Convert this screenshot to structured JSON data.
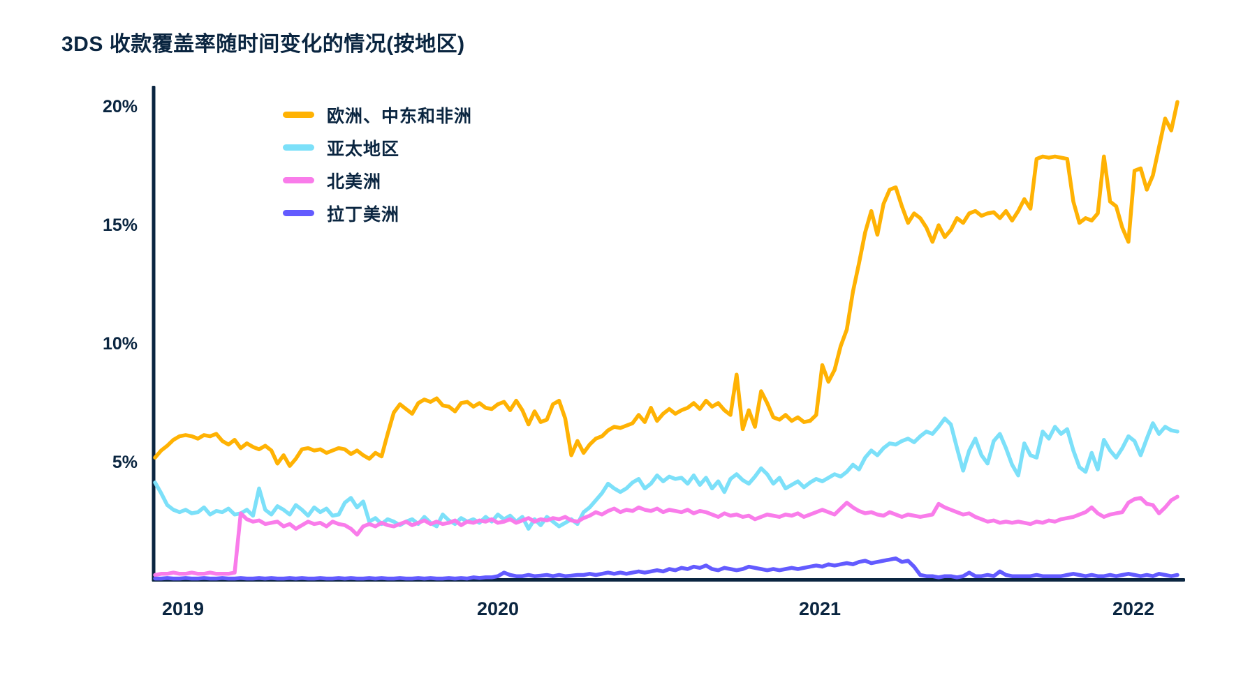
{
  "title": "3DS 收款覆盖率随时间变化的情况(按地区)",
  "colors": {
    "text_navy": "#0a2540",
    "axis": "#0a2540",
    "background": "#ffffff",
    "emea_orange": "#ffb203",
    "apac_cyan": "#7ce0f9",
    "na_pink": "#f97cea",
    "latam_purple": "#635bff"
  },
  "chart_data": {
    "type": "line",
    "title": "3DS 收款覆盖率随时间变化的情况(按地区)",
    "unit": "%",
    "grid": false,
    "legend_position": "top-left-inside",
    "x_axis": {
      "tick_labels": [
        "2019",
        "2020",
        "2021",
        "2022"
      ],
      "range_description": "late 2018 through early 2022, weekly points"
    },
    "y_axis": {
      "tick_labels": [
        "5%",
        "10%",
        "15%",
        "20%"
      ],
      "tick_values": [
        5,
        10,
        15,
        20
      ],
      "min": 0,
      "max": 21
    },
    "series": [
      {
        "name": "欧洲、中东和非洲",
        "color": "#ffb203",
        "values": [
          5.2,
          5.5,
          5.7,
          5.95,
          6.1,
          6.15,
          6.1,
          6.0,
          6.15,
          6.1,
          6.2,
          5.9,
          5.75,
          5.95,
          5.6,
          5.8,
          5.65,
          5.55,
          5.7,
          5.5,
          4.95,
          5.3,
          4.85,
          5.15,
          5.55,
          5.6,
          5.5,
          5.55,
          5.4,
          5.5,
          5.6,
          5.55,
          5.35,
          5.5,
          5.3,
          5.15,
          5.4,
          5.25,
          6.2,
          7.1,
          7.45,
          7.25,
          7.05,
          7.5,
          7.65,
          7.55,
          7.7,
          7.4,
          7.35,
          7.15,
          7.5,
          7.55,
          7.35,
          7.5,
          7.3,
          7.25,
          7.45,
          7.55,
          7.2,
          7.6,
          7.2,
          6.6,
          7.15,
          6.7,
          6.8,
          7.45,
          7.6,
          6.85,
          5.3,
          5.9,
          5.4,
          5.75,
          6.0,
          6.1,
          6.35,
          6.5,
          6.45,
          6.55,
          6.65,
          7.0,
          6.7,
          7.3,
          6.75,
          7.05,
          7.25,
          7.05,
          7.2,
          7.3,
          7.5,
          7.25,
          7.6,
          7.35,
          7.5,
          7.2,
          7.0,
          8.7,
          6.4,
          7.2,
          6.5,
          8.0,
          7.5,
          6.9,
          6.8,
          7.0,
          6.75,
          6.9,
          6.7,
          6.75,
          7.0,
          9.1,
          8.4,
          8.9,
          9.9,
          10.6,
          12.2,
          13.4,
          14.7,
          15.6,
          14.6,
          15.9,
          16.5,
          16.6,
          15.8,
          15.1,
          15.5,
          15.3,
          14.9,
          14.3,
          15.0,
          14.5,
          14.8,
          15.3,
          15.1,
          15.5,
          15.6,
          15.4,
          15.5,
          15.55,
          15.3,
          15.6,
          15.2,
          15.6,
          16.1,
          15.7,
          17.8,
          17.9,
          17.85,
          17.9,
          17.85,
          17.8,
          16.0,
          15.1,
          15.3,
          15.2,
          15.5,
          17.9,
          16.0,
          15.8,
          14.9,
          14.3,
          17.3,
          17.4,
          16.5,
          17.1,
          18.3,
          19.5,
          19.0,
          20.2
        ]
      },
      {
        "name": "亚太地区",
        "color": "#7ce0f9",
        "values": [
          4.15,
          3.7,
          3.2,
          3.0,
          2.9,
          3.0,
          2.85,
          2.9,
          3.1,
          2.8,
          2.95,
          2.9,
          3.05,
          2.8,
          2.85,
          3.0,
          2.75,
          3.9,
          3.0,
          2.8,
          3.15,
          3.0,
          2.8,
          3.2,
          3.0,
          2.75,
          3.1,
          2.9,
          3.05,
          2.75,
          2.8,
          3.3,
          3.5,
          3.1,
          3.35,
          2.5,
          2.65,
          2.4,
          2.6,
          2.5,
          2.35,
          2.5,
          2.6,
          2.4,
          2.7,
          2.45,
          2.3,
          2.8,
          2.55,
          2.4,
          2.65,
          2.5,
          2.6,
          2.45,
          2.7,
          2.5,
          2.8,
          2.6,
          2.75,
          2.5,
          2.7,
          2.2,
          2.6,
          2.35,
          2.7,
          2.5,
          2.3,
          2.45,
          2.6,
          2.4,
          2.9,
          3.1,
          3.4,
          3.7,
          4.1,
          3.9,
          3.75,
          3.9,
          4.15,
          4.3,
          3.9,
          4.1,
          4.45,
          4.2,
          4.4,
          4.3,
          4.35,
          4.1,
          4.45,
          4.05,
          4.35,
          3.9,
          4.2,
          3.75,
          4.3,
          4.5,
          4.25,
          4.1,
          4.4,
          4.75,
          4.5,
          4.1,
          4.35,
          3.9,
          4.05,
          4.2,
          3.95,
          4.15,
          4.3,
          4.2,
          4.35,
          4.5,
          4.4,
          4.6,
          4.9,
          4.7,
          5.2,
          5.5,
          5.3,
          5.6,
          5.8,
          5.75,
          5.9,
          6.0,
          5.85,
          6.1,
          6.3,
          6.2,
          6.5,
          6.85,
          6.6,
          5.6,
          4.65,
          5.5,
          6.0,
          5.3,
          4.95,
          5.9,
          6.2,
          5.6,
          4.9,
          4.45,
          5.8,
          5.3,
          5.2,
          6.3,
          6.0,
          6.5,
          6.2,
          6.4,
          5.5,
          4.8,
          4.6,
          5.4,
          4.7,
          5.95,
          5.5,
          5.2,
          5.6,
          6.1,
          5.9,
          5.3,
          6.0,
          6.65,
          6.2,
          6.5,
          6.35,
          6.3
        ]
      },
      {
        "name": "北美洲",
        "color": "#f97cea",
        "values": [
          0.25,
          0.3,
          0.3,
          0.35,
          0.3,
          0.3,
          0.35,
          0.3,
          0.3,
          0.35,
          0.3,
          0.3,
          0.3,
          0.35,
          2.85,
          2.6,
          2.5,
          2.55,
          2.4,
          2.45,
          2.5,
          2.3,
          2.4,
          2.2,
          2.35,
          2.5,
          2.4,
          2.45,
          2.3,
          2.5,
          2.4,
          2.35,
          2.2,
          1.95,
          2.3,
          2.4,
          2.3,
          2.45,
          2.35,
          2.3,
          2.4,
          2.5,
          2.35,
          2.45,
          2.55,
          2.4,
          2.5,
          2.4,
          2.45,
          2.55,
          2.35,
          2.5,
          2.45,
          2.55,
          2.5,
          2.6,
          2.45,
          2.5,
          2.6,
          2.45,
          2.55,
          2.65,
          2.5,
          2.6,
          2.55,
          2.65,
          2.6,
          2.7,
          2.55,
          2.5,
          2.65,
          2.75,
          2.9,
          2.8,
          2.95,
          3.05,
          2.9,
          3.0,
          2.95,
          3.1,
          3.0,
          2.95,
          3.05,
          2.9,
          3.0,
          2.95,
          2.9,
          3.0,
          2.85,
          2.95,
          2.9,
          2.8,
          2.7,
          2.85,
          2.75,
          2.8,
          2.7,
          2.75,
          2.6,
          2.7,
          2.8,
          2.75,
          2.7,
          2.8,
          2.75,
          2.85,
          2.7,
          2.8,
          2.9,
          3.0,
          2.9,
          2.8,
          3.05,
          3.3,
          3.1,
          2.95,
          2.85,
          2.9,
          2.8,
          2.75,
          2.9,
          2.8,
          2.7,
          2.8,
          2.75,
          2.7,
          2.75,
          2.8,
          3.25,
          3.1,
          3.0,
          2.9,
          2.8,
          2.85,
          2.7,
          2.6,
          2.5,
          2.55,
          2.45,
          2.5,
          2.45,
          2.5,
          2.45,
          2.4,
          2.5,
          2.45,
          2.55,
          2.5,
          2.6,
          2.65,
          2.7,
          2.8,
          2.9,
          3.1,
          2.85,
          2.7,
          2.8,
          2.85,
          2.9,
          3.3,
          3.45,
          3.5,
          3.25,
          3.2,
          2.85,
          3.1,
          3.4,
          3.55
        ]
      },
      {
        "name": "拉丁美洲",
        "color": "#635bff",
        "values": [
          0.1,
          0.1,
          0.12,
          0.1,
          0.1,
          0.12,
          0.1,
          0.1,
          0.12,
          0.1,
          0.1,
          0.12,
          0.1,
          0.1,
          0.12,
          0.1,
          0.1,
          0.12,
          0.1,
          0.12,
          0.1,
          0.1,
          0.12,
          0.1,
          0.12,
          0.1,
          0.1,
          0.12,
          0.1,
          0.1,
          0.12,
          0.1,
          0.12,
          0.1,
          0.1,
          0.12,
          0.1,
          0.12,
          0.1,
          0.1,
          0.12,
          0.1,
          0.1,
          0.12,
          0.1,
          0.12,
          0.1,
          0.1,
          0.12,
          0.1,
          0.12,
          0.1,
          0.15,
          0.12,
          0.15,
          0.15,
          0.2,
          0.35,
          0.25,
          0.2,
          0.2,
          0.25,
          0.2,
          0.22,
          0.25,
          0.2,
          0.25,
          0.2,
          0.22,
          0.25,
          0.25,
          0.3,
          0.25,
          0.3,
          0.35,
          0.3,
          0.35,
          0.3,
          0.35,
          0.4,
          0.35,
          0.4,
          0.45,
          0.4,
          0.5,
          0.45,
          0.55,
          0.5,
          0.6,
          0.55,
          0.65,
          0.5,
          0.45,
          0.55,
          0.5,
          0.45,
          0.5,
          0.6,
          0.55,
          0.5,
          0.45,
          0.5,
          0.45,
          0.5,
          0.55,
          0.5,
          0.55,
          0.6,
          0.65,
          0.6,
          0.7,
          0.65,
          0.7,
          0.75,
          0.7,
          0.8,
          0.85,
          0.75,
          0.8,
          0.85,
          0.9,
          0.95,
          0.8,
          0.85,
          0.6,
          0.25,
          0.2,
          0.2,
          0.15,
          0.2,
          0.2,
          0.15,
          0.2,
          0.35,
          0.2,
          0.2,
          0.25,
          0.2,
          0.4,
          0.25,
          0.2,
          0.2,
          0.2,
          0.2,
          0.25,
          0.2,
          0.2,
          0.2,
          0.2,
          0.25,
          0.3,
          0.25,
          0.2,
          0.25,
          0.2,
          0.2,
          0.25,
          0.2,
          0.25,
          0.3,
          0.25,
          0.2,
          0.25,
          0.2,
          0.3,
          0.25,
          0.2,
          0.25
        ]
      }
    ]
  }
}
